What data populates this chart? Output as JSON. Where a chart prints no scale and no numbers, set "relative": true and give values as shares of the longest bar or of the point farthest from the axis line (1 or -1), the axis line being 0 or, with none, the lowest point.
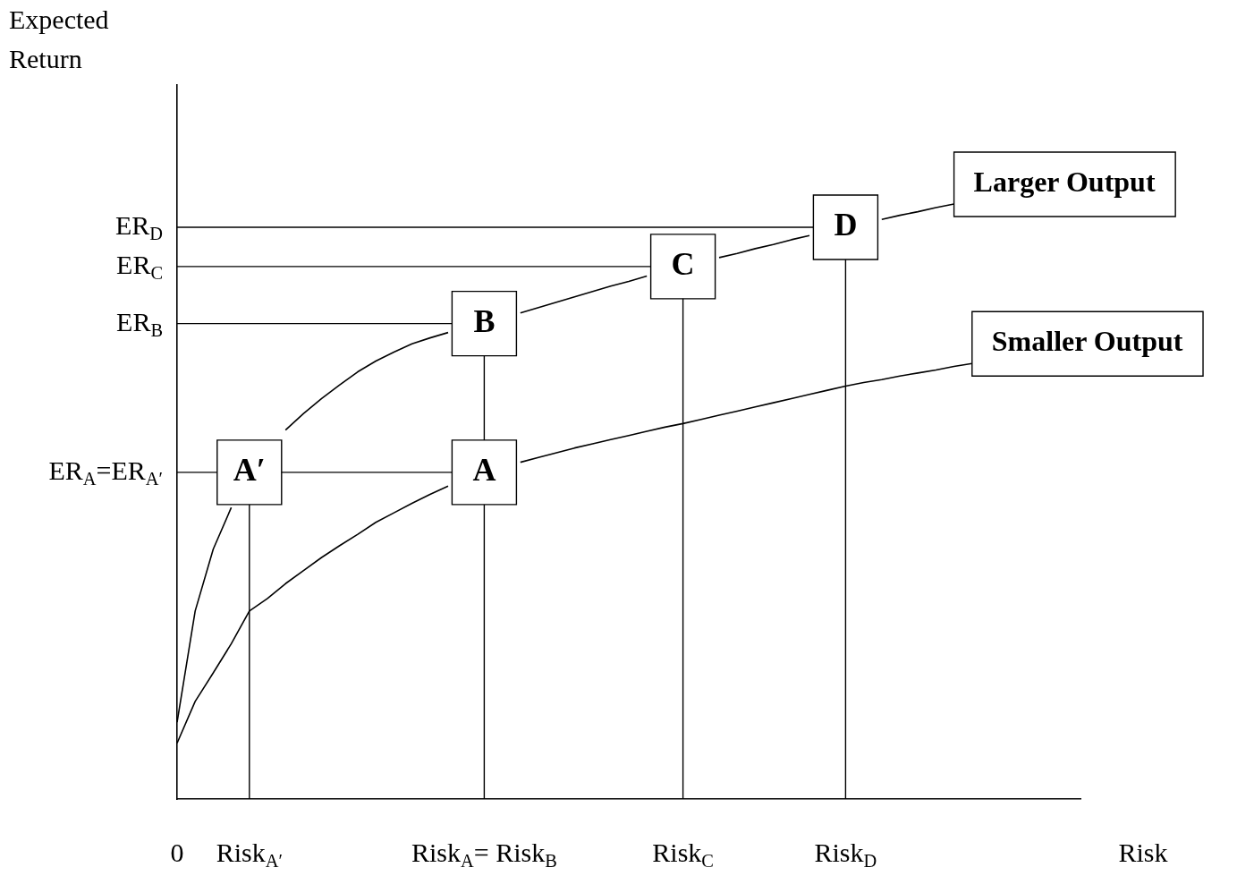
{
  "chart_data": {
    "type": "line",
    "relative": true,
    "xlabel": "Risk",
    "marker": "none",
    "line_style": "solid",
    "legend": false,
    "grid": false,
    "categories": [
      "0",
      null,
      null,
      null,
      "Risk$_{A′}$",
      null,
      null,
      null,
      null,
      null,
      null,
      null,
      null,
      null,
      null,
      null,
      null,
      "Risk$_{A}$= Risk$_{B}$",
      null,
      null,
      null,
      null,
      null,
      null,
      null,
      null,
      null,
      null,
      "Risk$_{C}$",
      null,
      null,
      null,
      null,
      null,
      null,
      null,
      null,
      "Risk$_{D}$",
      null,
      null,
      null,
      null,
      null,
      null,
      null,
      null,
      null,
      null,
      null,
      null,
      null
    ],
    "ref_lines": [
      {
        "axis": "x",
        "value": "Risk$_{A′}$"
      },
      {
        "axis": "x",
        "value": "Risk$_{A}$= Risk$_{B}$"
      },
      {
        "axis": "x",
        "value": "Risk$_{C}$"
      },
      {
        "axis": "x",
        "value": "Risk$_{D}$"
      },
      {
        "axis": "y",
        "value": 0.549,
        "label": "ER$_{A}$=ER$_{A′}$"
      },
      {
        "axis": "y",
        "value": 0.799,
        "label": "ER$_{B}$"
      },
      {
        "axis": "y",
        "value": 0.895,
        "label": "ER$_{C}$"
      },
      {
        "axis": "y",
        "value": 0.961,
        "label": "ER$_{D}$"
      }
    ],
    "series": [
      {
        "name": "Larger Output",
        "color": "#000000",
        "values": [
          0.129,
          0.316,
          0.42,
          0.49,
          null,
          null,
          0.62,
          0.648,
          0.673,
          0.696,
          0.718,
          0.736,
          0.751,
          0.765,
          0.775,
          0.784,
          null,
          null,
          null,
          0.817,
          0.826,
          0.835,
          0.844,
          0.853,
          0.862,
          0.87,
          0.879,
          null,
          null,
          null,
          0.91,
          0.917,
          0.925,
          0.932,
          0.94,
          0.947,
          null,
          null,
          null,
          0.974,
          0.981,
          0.987,
          0.994,
          1.0,
          null,
          null,
          null,
          null,
          null,
          null,
          null
        ]
      },
      {
        "name": "Smaller Output",
        "color": "#000000",
        "values": [
          0.094,
          0.164,
          0.212,
          0.261,
          0.316,
          0.337,
          0.362,
          0.384,
          0.406,
          0.426,
          0.445,
          0.465,
          0.481,
          0.497,
          0.512,
          0.526,
          null,
          null,
          null,
          0.566,
          0.574,
          0.582,
          0.59,
          0.597,
          0.604,
          0.611,
          0.618,
          0.625,
          0.631,
          0.638,
          0.645,
          0.652,
          0.659,
          0.666,
          0.673,
          0.68,
          0.687,
          0.694,
          0.7,
          0.705,
          0.711,
          0.716,
          0.721,
          0.727,
          0.732,
          null,
          null,
          null,
          null,
          null,
          null
        ]
      }
    ],
    "annotations": [
      "Expected Return",
      {
        "text": "A′",
        "x": "Risk$_{A′}$",
        "y": 0.549
      },
      {
        "text": "A",
        "x": "Risk$_{A}$= Risk$_{B}$",
        "y": 0.549
      },
      {
        "text": "B",
        "x": "Risk$_{A}$= Risk$_{B}$",
        "y": 0.799
      },
      {
        "text": "C",
        "x": "Risk$_{C}$",
        "y": 0.895
      },
      {
        "text": "D",
        "x": "Risk$_{D}$",
        "y": 0.961
      }
    ]
  }
}
